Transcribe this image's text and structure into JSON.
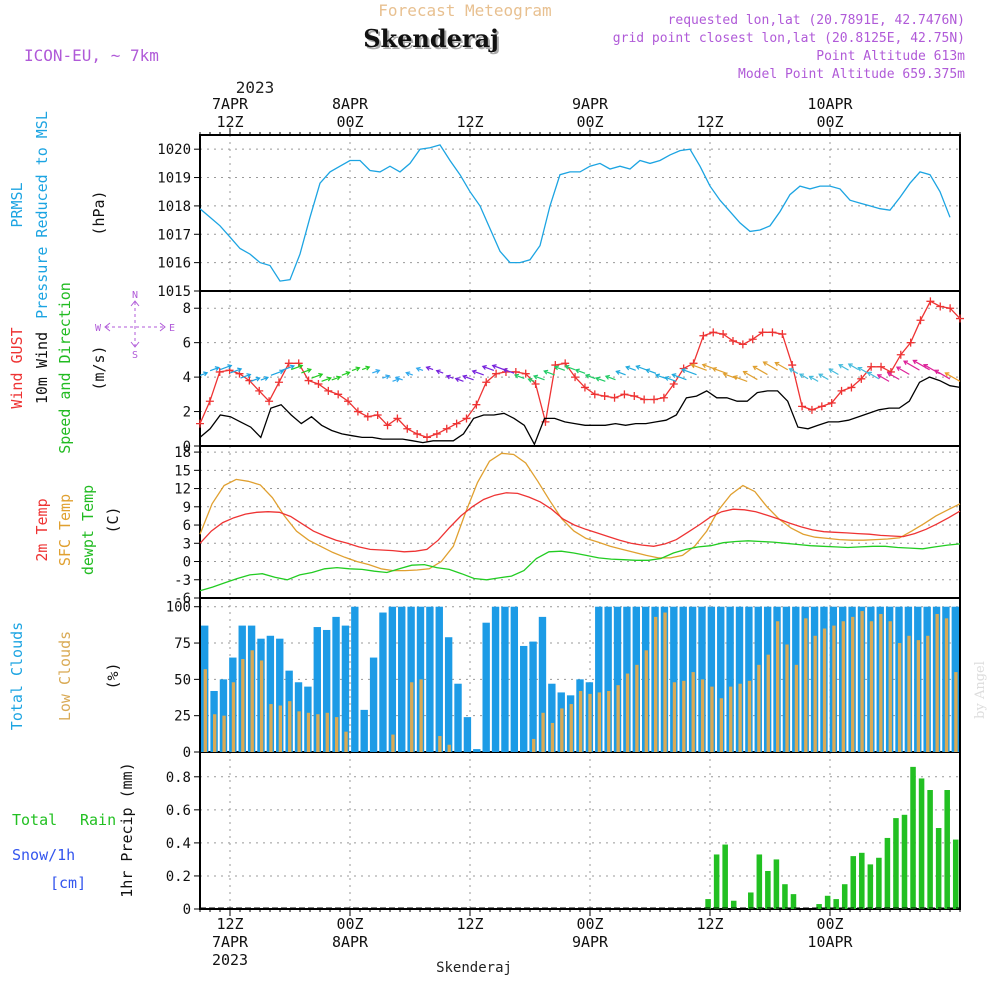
{
  "header": {
    "subtitle": "Forecast Meteogram",
    "title": "Skenderaj",
    "model": "ICON-EU, ~ 7km",
    "requested": "requested lon,lat (20.7891E, 42.7476N)",
    "grid_point": "grid point closest lon,lat (20.8125E, 42.75N)",
    "point_alt": "Point Altitude 613m",
    "model_alt": "Model Point Altitude 659.375m",
    "footer_place": "Skenderaj",
    "watermark": "by Angel"
  },
  "colors": {
    "pressure": "#1ca4e2",
    "gust": "#ee3333",
    "wind": "#000000",
    "wind_dir": "#22cc22",
    "t2m": "#ee3333",
    "tsfc": "#e0a030",
    "dewpt": "#22cc22",
    "total_clouds": "#1c9be6",
    "low_clouds": "#d9aa55",
    "rain": "#22c022",
    "snow": "#3355ee",
    "label_purple": "#b05ad8"
  },
  "axis_x": {
    "top_year": "2023",
    "ticks": [
      {
        "t": 3,
        "top1": "7APR",
        "top2": "12Z",
        "bot1": "12Z",
        "bot2": "7APR",
        "bot3": "2023"
      },
      {
        "t": 15,
        "top1": "8APR",
        "top2": "00Z",
        "bot1": "00Z",
        "bot2": "8APR",
        "bot3": ""
      },
      {
        "t": 27,
        "top1": "",
        "top2": "12Z",
        "bot1": "12Z",
        "bot2": "",
        "bot3": ""
      },
      {
        "t": 39,
        "top1": "9APR",
        "top2": "00Z",
        "bot1": "00Z",
        "bot2": "9APR",
        "bot3": ""
      },
      {
        "t": 51,
        "top1": "",
        "top2": "12Z",
        "bot1": "12Z",
        "bot2": "",
        "bot3": ""
      },
      {
        "t": 63,
        "top1": "10APR",
        "top2": "00Z",
        "bot1": "00Z",
        "bot2": "10APR",
        "bot3": ""
      }
    ]
  },
  "panels": {
    "pressure": {
      "labels": [
        "PRMSL",
        "Pressure Reduced to MSL",
        "(hPa)"
      ],
      "ticks": [
        "1015",
        "1016",
        "1017",
        "1018",
        "1019",
        "1020"
      ]
    },
    "wind": {
      "labels": [
        "Wind GUST",
        "10m Wind",
        "Speed and Direction",
        "(m/s)"
      ],
      "compass": {
        "n": "N",
        "s": "S",
        "w": "W",
        "e": "E"
      },
      "ticks": [
        "0",
        "2",
        "4",
        "6",
        "8"
      ]
    },
    "temp": {
      "labels": [
        "2m Temp",
        "SFC Temp",
        "dewpt Temp",
        "(C)"
      ],
      "ticks": [
        "-6",
        "-3",
        "0",
        "3",
        "6",
        "9",
        "12",
        "15",
        "18"
      ]
    },
    "clouds": {
      "labels": [
        "Total Clouds",
        "Low Clouds",
        "(%)"
      ],
      "ticks": [
        "0",
        "25",
        "50",
        "75",
        "100"
      ]
    },
    "precip": {
      "labels": [
        "Total",
        "Rain",
        "Snow/1h",
        "[cm]",
        "1hr Precip (mm)"
      ],
      "ticks": [
        "0",
        "0.2",
        "0.4",
        "0.6",
        "0.8"
      ]
    }
  },
  "chart_data": [
    {
      "type": "line",
      "title": "PRMSL Pressure Reduced to MSL",
      "ylabel": "hPa",
      "ylim": [
        1015,
        1020.5
      ],
      "x_unit": "hours from 7APR 09Z",
      "series": [
        {
          "name": "PRMSL",
          "x": [
            0,
            1,
            2,
            3,
            4,
            5,
            6,
            7,
            8,
            9,
            10,
            11,
            12,
            13,
            14,
            15,
            16,
            17,
            18,
            19,
            20,
            21,
            22,
            23,
            24,
            25,
            26,
            27,
            28,
            29,
            30,
            31,
            32,
            33,
            34,
            35,
            36,
            37,
            38,
            39,
            40,
            41,
            42,
            43,
            44,
            45,
            46,
            47,
            48,
            49,
            50,
            51,
            52,
            53,
            54,
            55,
            56,
            57,
            58,
            59,
            60,
            61,
            62,
            63,
            64,
            65,
            66,
            67,
            68,
            69,
            70,
            71,
            72,
            73,
            74,
            75
          ],
          "values": [
            1017.9,
            1017.6,
            1017.3,
            1016.9,
            1016.5,
            1016.3,
            1016.0,
            1015.9,
            1015.35,
            1015.4,
            1016.3,
            1017.6,
            1018.8,
            1019.2,
            1019.4,
            1019.6,
            1019.6,
            1019.25,
            1019.2,
            1019.4,
            1019.2,
            1019.5,
            1020.0,
            1020.05,
            1020.15,
            1019.6,
            1019.1,
            1018.5,
            1018.0,
            1017.2,
            1016.4,
            1016.0,
            1016.0,
            1016.1,
            1016.6,
            1018.0,
            1019.1,
            1019.2,
            1019.2,
            1019.4,
            1019.5,
            1019.3,
            1019.4,
            1019.3,
            1019.6,
            1019.5,
            1019.6,
            1019.8,
            1019.95,
            1020.0,
            1019.4,
            1018.7,
            1018.2,
            1017.8,
            1017.4,
            1017.1,
            1017.15,
            1017.3,
            1017.8,
            1018.4,
            1018.7,
            1018.6,
            1018.7,
            1018.7,
            1018.6,
            1018.2,
            1018.1,
            1018.0,
            1017.9,
            1017.85,
            1018.3,
            1018.8,
            1019.2,
            1019.1,
            1018.5,
            1017.6
          ]
        }
      ]
    },
    {
      "type": "line",
      "title": "Wind GUST / 10m Wind Speed and Direction",
      "ylabel": "m/s",
      "ylim": [
        0,
        9
      ],
      "series": [
        {
          "name": "Wind GUST",
          "values": [
            1.3,
            2.6,
            4.3,
            4.4,
            4.2,
            3.8,
            3.2,
            2.6,
            3.7,
            4.8,
            4.8,
            3.8,
            3.6,
            3.2,
            3.0,
            2.6,
            2.0,
            1.7,
            1.8,
            1.2,
            1.6,
            1.0,
            0.7,
            0.5,
            0.7,
            1.0,
            1.3,
            1.6,
            2.4,
            3.7,
            4.2,
            4.3,
            4.3,
            4.2,
            3.6,
            1.4,
            4.7,
            4.8,
            4.0,
            3.4,
            3.0,
            2.9,
            2.8,
            3.0,
            2.9,
            2.7,
            2.7,
            2.8,
            3.6,
            4.5,
            4.8,
            6.4,
            6.6,
            6.5,
            6.1,
            5.9,
            6.2,
            6.6,
            6.6,
            6.5,
            4.7,
            2.3,
            2.1,
            2.3,
            2.5,
            3.2,
            3.4,
            3.9,
            4.6,
            4.6,
            4.3,
            5.3,
            6.0,
            7.3,
            8.4,
            8.1,
            8.0,
            7.4
          ]
        },
        {
          "name": "10m Wind",
          "values": [
            0.5,
            1.0,
            1.8,
            1.7,
            1.4,
            1.1,
            0.5,
            2.2,
            2.4,
            1.8,
            1.3,
            1.7,
            1.2,
            0.9,
            0.7,
            0.6,
            0.5,
            0.5,
            0.4,
            0.4,
            0.4,
            0.3,
            0.2,
            0.3,
            0.3,
            0.3,
            0.7,
            1.6,
            1.8,
            1.8,
            1.9,
            1.6,
            1.2,
            0.1,
            1.6,
            1.6,
            1.4,
            1.3,
            1.2,
            1.2,
            1.2,
            1.3,
            1.2,
            1.3,
            1.3,
            1.4,
            1.5,
            1.8,
            2.8,
            2.9,
            3.2,
            2.8,
            2.8,
            2.6,
            2.6,
            3.1,
            3.2,
            3.2,
            2.6,
            1.1,
            1.0,
            1.2,
            1.4,
            1.4,
            1.5,
            1.7,
            1.9,
            2.1,
            2.2,
            2.2,
            2.6,
            3.7,
            4.0,
            3.8,
            3.5,
            3.4
          ]
        }
      ]
    },
    {
      "type": "line",
      "title": "2m Temp / SFC Temp / dewpt Temp",
      "ylabel": "C",
      "ylim": [
        -6,
        19
      ],
      "series": [
        {
          "name": "2m Temp",
          "values": [
            3.0,
            5.0,
            6.4,
            7.2,
            7.8,
            8.1,
            8.2,
            8.1,
            7.4,
            6.2,
            5.0,
            4.2,
            3.5,
            3.0,
            2.4,
            2.0,
            1.9,
            1.8,
            1.6,
            1.7,
            2.0,
            3.5,
            5.6,
            7.5,
            9.0,
            10.2,
            10.9,
            11.3,
            11.2,
            10.6,
            9.8,
            8.6,
            7.0,
            6.0,
            5.3,
            4.7,
            4.1,
            3.5,
            3.0,
            2.7,
            2.5,
            2.9,
            3.6,
            4.8,
            6.0,
            7.3,
            8.2,
            8.6,
            8.5,
            8.2,
            7.6,
            7.0,
            6.3,
            5.7,
            5.2,
            4.9,
            4.8,
            4.7,
            4.6,
            4.5,
            4.3,
            4.2,
            4.1,
            4.6,
            5.3,
            6.2,
            7.2,
            8.3
          ]
        },
        {
          "name": "SFC Temp",
          "values": [
            4.5,
            9.5,
            12.5,
            13.5,
            13.2,
            12.6,
            10.5,
            7.5,
            5.0,
            3.5,
            2.5,
            1.5,
            0.7,
            0.0,
            -0.5,
            -1.2,
            -1.5,
            -1.5,
            -1.4,
            -1.2,
            0.0,
            2.5,
            8.0,
            13.0,
            16.5,
            17.8,
            17.6,
            16.2,
            13.2,
            10.0,
            7.0,
            5.0,
            3.8,
            3.2,
            2.5,
            2.0,
            1.5,
            1.0,
            0.6,
            0.6,
            1.0,
            2.5,
            5.0,
            8.5,
            11.0,
            12.5,
            11.5,
            9.0,
            7.0,
            5.5,
            4.5,
            4.0,
            3.8,
            3.6,
            3.5,
            3.5,
            3.6,
            3.7,
            3.9,
            5.0,
            6.2,
            7.5,
            8.5,
            9.5
          ]
        },
        {
          "name": "dewpt Temp",
          "values": [
            -4.8,
            -4.2,
            -3.5,
            -2.8,
            -2.2,
            -2.0,
            -2.6,
            -3.0,
            -2.2,
            -1.8,
            -1.2,
            -1.0,
            -1.2,
            -1.3,
            -1.6,
            -1.8,
            -1.2,
            -0.6,
            -0.5,
            -1.0,
            -1.3,
            -2.0,
            -2.8,
            -3.0,
            -2.7,
            -2.4,
            -1.5,
            0.5,
            1.6,
            1.7,
            1.4,
            1.0,
            0.6,
            0.4,
            0.3,
            0.2,
            0.2,
            0.5,
            1.4,
            2.0,
            2.4,
            2.6,
            3.1,
            3.3,
            3.4,
            3.3,
            3.2,
            3.0,
            2.8,
            2.6,
            2.5,
            2.4,
            2.3,
            2.4,
            2.5,
            2.5,
            2.3,
            2.2,
            2.1,
            2.4,
            2.7,
            2.9
          ]
        }
      ]
    },
    {
      "type": "bar",
      "title": "Total Clouds / Low Clouds",
      "ylabel": "%",
      "ylim": [
        0,
        100
      ],
      "series": [
        {
          "name": "Total Clouds",
          "values": [
            87,
            42,
            50,
            65,
            87,
            87,
            78,
            80,
            78,
            56,
            48,
            45,
            86,
            84,
            93,
            87,
            100,
            29,
            65,
            96,
            100,
            100,
            100,
            100,
            100,
            100,
            79,
            47,
            24,
            2,
            89,
            100,
            100,
            100,
            73,
            76,
            93,
            47,
            41,
            39,
            50,
            48,
            100,
            100,
            100,
            100,
            100,
            100,
            100,
            100,
            100,
            100,
            100,
            100,
            100,
            100,
            100,
            100,
            100,
            100,
            100,
            100,
            100,
            100,
            100,
            100,
            100,
            100,
            100,
            100,
            100,
            100,
            100,
            100,
            100,
            100,
            100,
            100,
            100,
            100,
            100
          ]
        },
        {
          "name": "Low Clouds",
          "values": [
            57,
            26,
            25,
            48,
            64,
            70,
            63,
            33,
            32,
            35,
            28,
            27,
            26,
            27,
            24,
            14,
            0,
            0,
            0,
            0,
            12,
            0,
            48,
            50,
            0,
            11,
            5,
            0,
            0,
            0,
            0,
            0,
            0,
            0,
            0,
            9,
            27,
            20,
            30,
            33,
            42,
            40,
            41,
            42,
            46,
            54,
            60,
            70,
            93,
            96,
            48,
            49,
            55,
            50,
            45,
            37,
            45,
            47,
            49,
            60,
            67,
            90,
            74,
            60,
            92,
            80,
            85,
            87,
            90,
            93,
            97,
            90,
            95,
            90,
            75,
            80,
            77,
            80,
            95,
            92,
            55
          ]
        }
      ]
    },
    {
      "type": "bar",
      "title": "1hr Precip",
      "ylabel": "1hr Precip (mm)",
      "ylim": [
        0,
        0.95
      ],
      "series": [
        {
          "name": "Total Rain",
          "values": [
            0,
            0,
            0,
            0,
            0,
            0,
            0,
            0,
            0,
            0,
            0,
            0,
            0,
            0,
            0,
            0,
            0,
            0,
            0,
            0,
            0,
            0,
            0,
            0,
            0,
            0,
            0,
            0,
            0,
            0,
            0,
            0,
            0,
            0,
            0,
            0,
            0,
            0,
            0,
            0,
            0,
            0,
            0,
            0,
            0,
            0,
            0,
            0,
            0,
            0,
            0,
            0,
            0,
            0,
            0,
            0,
            0,
            0,
            0,
            0.06,
            0.33,
            0.39,
            0.05,
            0,
            0.1,
            0.33,
            0.23,
            0.3,
            0.15,
            0.09,
            0,
            0,
            0.03,
            0.08,
            0.06,
            0.15,
            0.32,
            0.34,
            0.27,
            0.31,
            0.43,
            0.55,
            0.57,
            0.86,
            0.79,
            0.72,
            0.49,
            0.72,
            0.42
          ]
        },
        {
          "name": "Snow/1h",
          "values": []
        }
      ]
    }
  ]
}
